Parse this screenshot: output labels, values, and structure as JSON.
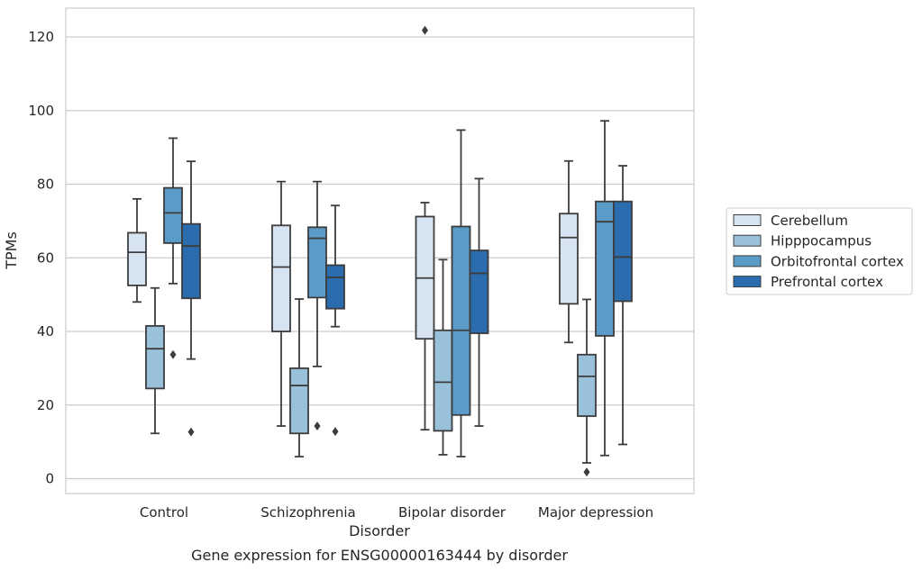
{
  "chart_data": {
    "type": "boxplot",
    "title": "Gene expression for ENSG00000163444 by disorder",
    "xlabel": "Disorder",
    "ylabel": "TPMs",
    "ylim": [
      -4,
      128
    ],
    "yticks": [
      0,
      20,
      40,
      60,
      80,
      100,
      120
    ],
    "grid": true,
    "legend_position": "right",
    "categories": [
      "Control",
      "Schizophrenia",
      "Bipolar disorder",
      "Major depression"
    ],
    "series": [
      {
        "name": "Cerebellum",
        "color": "#d6e4f2",
        "boxes": [
          {
            "whislo": 48,
            "q1": 52.5,
            "med": 61.5,
            "q3": 66.8,
            "whishi": 76,
            "fliers": []
          },
          {
            "whislo": 14.3,
            "q1": 40,
            "med": 57.5,
            "q3": 68.8,
            "whishi": 80.7,
            "fliers": []
          },
          {
            "whislo": 13.3,
            "q1": 38,
            "med": 54.5,
            "q3": 71.2,
            "whishi": 75,
            "fliers": [
              121.8
            ]
          },
          {
            "whislo": 37,
            "q1": 47.5,
            "med": 65.5,
            "q3": 72,
            "whishi": 86.3,
            "fliers": []
          }
        ]
      },
      {
        "name": "Hipppocampus",
        "color": "#9ac1da",
        "boxes": [
          {
            "whislo": 12.3,
            "q1": 24.5,
            "med": 35.3,
            "q3": 41.5,
            "whishi": 51.8,
            "fliers": []
          },
          {
            "whislo": 6,
            "q1": 12.3,
            "med": 25.3,
            "q3": 30,
            "whishi": 48.8,
            "fliers": []
          },
          {
            "whislo": 6.5,
            "q1": 13,
            "med": 26.2,
            "q3": 40.3,
            "whishi": 59.5,
            "fliers": []
          },
          {
            "whislo": 4.3,
            "q1": 17,
            "med": 27.8,
            "q3": 33.7,
            "whishi": 48.7,
            "fliers": [
              1.8
            ]
          }
        ]
      },
      {
        "name": "Orbitofrontal cortex",
        "color": "#5b9bc8",
        "boxes": [
          {
            "whislo": 53,
            "q1": 64,
            "med": 72.2,
            "q3": 79,
            "whishi": 92.5,
            "fliers": [
              33.7
            ]
          },
          {
            "whislo": 30.5,
            "q1": 49.2,
            "med": 65.3,
            "q3": 68.3,
            "whishi": 80.7,
            "fliers": [
              14.3
            ]
          },
          {
            "whislo": 6,
            "q1": 17.3,
            "med": 40.3,
            "q3": 68.5,
            "whishi": 94.7,
            "fliers": []
          },
          {
            "whislo": 6.3,
            "q1": 38.8,
            "med": 69.8,
            "q3": 75.3,
            "whishi": 97.2,
            "fliers": []
          }
        ]
      },
      {
        "name": "Prefrontal cortex",
        "color": "#2b6cae",
        "boxes": [
          {
            "whislo": 32.5,
            "q1": 49,
            "med": 63.2,
            "q3": 69.2,
            "whishi": 86.2,
            "fliers": [
              12.7
            ]
          },
          {
            "whislo": 41.3,
            "q1": 46.2,
            "med": 54.7,
            "q3": 58,
            "whishi": 74.2,
            "fliers": [
              12.8
            ]
          },
          {
            "whislo": 14.3,
            "q1": 39.5,
            "med": 55.8,
            "q3": 62,
            "whishi": 81.5,
            "fliers": []
          },
          {
            "whislo": 9.3,
            "q1": 48.2,
            "med": 60.2,
            "q3": 75.3,
            "whishi": 85,
            "fliers": []
          }
        ]
      }
    ]
  }
}
